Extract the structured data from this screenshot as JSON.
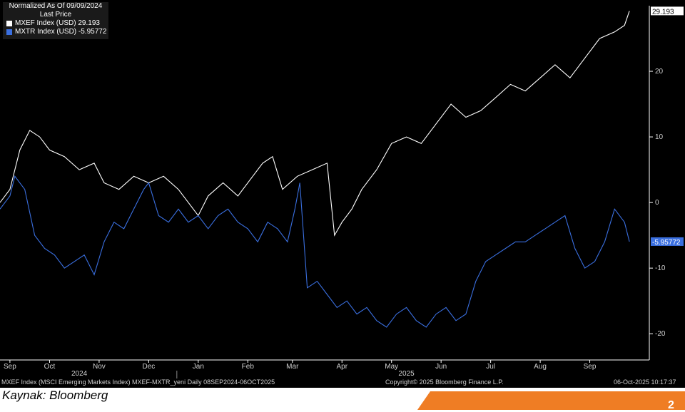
{
  "legend": {
    "header_line1": "Normalized As Of 09/09/2024",
    "header_line2": "Last Price",
    "items": [
      {
        "label": "MXEF Index (USD)",
        "value": "29.193",
        "color": "#ffffff"
      },
      {
        "label": "MXTR Index (USD)",
        "value": "-5.95772",
        "color": "#3a6fe0"
      }
    ]
  },
  "footer": {
    "left": "MXEF Index (MSCI Emerging Markets Index) MXEF-MXTR_yeni Daily 08SEP2024-06OCT2025",
    "center": "Copyright© 2025 Bloomberg Finance L.P.",
    "right": "06-Oct-2025 10:17:37"
  },
  "source": "Kaynak: Bloomberg",
  "page_number": "2",
  "chart_data": {
    "type": "line",
    "ylim": [
      -24,
      30
    ],
    "yticks": [
      20,
      10,
      0,
      -10,
      -20
    ],
    "months": [
      {
        "label": "Sep",
        "pos": 0.2
      },
      {
        "label": "Oct",
        "pos": 1.0
      },
      {
        "label": "Nov",
        "pos": 2.0
      },
      {
        "label": "Dec",
        "pos": 3.0
      },
      {
        "label": "Jan",
        "pos": 4.0
      },
      {
        "label": "Feb",
        "pos": 5.0
      },
      {
        "label": "Mar",
        "pos": 5.9
      },
      {
        "label": "Apr",
        "pos": 6.9
      },
      {
        "label": "May",
        "pos": 7.9
      },
      {
        "label": "Jun",
        "pos": 8.9
      },
      {
        "label": "Jul",
        "pos": 9.9
      },
      {
        "label": "Aug",
        "pos": 10.9
      },
      {
        "label": "Sep",
        "pos": 11.9
      }
    ],
    "years": [
      {
        "label": "2024",
        "pos": 1.6
      },
      {
        "label": "2025",
        "pos": 8.2
      }
    ],
    "xlim": [
      0,
      12.9
    ],
    "series": [
      {
        "name": "MXEF Index (USD)",
        "color": "#ffffff",
        "last_value": "29.193",
        "x": [
          0,
          0.2,
          0.4,
          0.6,
          0.8,
          1.0,
          1.3,
          1.6,
          1.9,
          2.1,
          2.4,
          2.7,
          3.0,
          3.3,
          3.6,
          3.9,
          4.0,
          4.2,
          4.5,
          4.8,
          5.1,
          5.3,
          5.5,
          5.7,
          6.0,
          6.3,
          6.6,
          6.75,
          6.9,
          7.1,
          7.3,
          7.6,
          7.9,
          8.2,
          8.5,
          8.8,
          9.1,
          9.4,
          9.7,
          10.0,
          10.3,
          10.6,
          10.9,
          11.2,
          11.5,
          11.8,
          12.1,
          12.4,
          12.6,
          12.7
        ],
        "y": [
          0,
          2,
          8,
          11,
          10,
          8,
          7,
          5,
          6,
          3,
          2,
          4,
          3,
          4,
          2,
          -1,
          -2,
          1,
          3,
          1,
          4,
          6,
          7,
          2,
          4,
          5,
          6,
          -5,
          -3,
          -1,
          2,
          5,
          9,
          10,
          9,
          12,
          15,
          13,
          14,
          16,
          18,
          17,
          19,
          21,
          19,
          22,
          25,
          26,
          27,
          29.2
        ]
      },
      {
        "name": "MXTR Index (USD)",
        "color": "#3a6fe0",
        "last_value": "-5.95772",
        "x": [
          0,
          0.2,
          0.3,
          0.5,
          0.7,
          0.9,
          1.1,
          1.3,
          1.5,
          1.7,
          1.9,
          2.1,
          2.3,
          2.5,
          2.7,
          2.9,
          3.0,
          3.2,
          3.4,
          3.6,
          3.8,
          4.0,
          4.2,
          4.4,
          4.6,
          4.8,
          5.0,
          5.2,
          5.4,
          5.6,
          5.8,
          5.95,
          6.05,
          6.2,
          6.4,
          6.6,
          6.8,
          7.0,
          7.2,
          7.4,
          7.6,
          7.8,
          8.0,
          8.2,
          8.4,
          8.6,
          8.8,
          9.0,
          9.2,
          9.4,
          9.6,
          9.8,
          10.0,
          10.2,
          10.4,
          10.6,
          10.8,
          11.0,
          11.2,
          11.4,
          11.6,
          11.8,
          12.0,
          12.2,
          12.4,
          12.6,
          12.7
        ],
        "y": [
          -1,
          1,
          4,
          2,
          -5,
          -7,
          -8,
          -10,
          -9,
          -8,
          -11,
          -6,
          -3,
          -4,
          -1,
          2,
          3,
          -2,
          -3,
          -1,
          -3,
          -2,
          -4,
          -2,
          -1,
          -3,
          -4,
          -6,
          -3,
          -4,
          -6,
          -1,
          3,
          -13,
          -12,
          -14,
          -16,
          -15,
          -17,
          -16,
          -18,
          -19,
          -17,
          -16,
          -18,
          -19,
          -17,
          -16,
          -18,
          -17,
          -12,
          -9,
          -8,
          -7,
          -6,
          -6,
          -5,
          -4,
          -3,
          -2,
          -7,
          -10,
          -9,
          -6,
          -1,
          -3,
          -5.96
        ]
      }
    ]
  }
}
